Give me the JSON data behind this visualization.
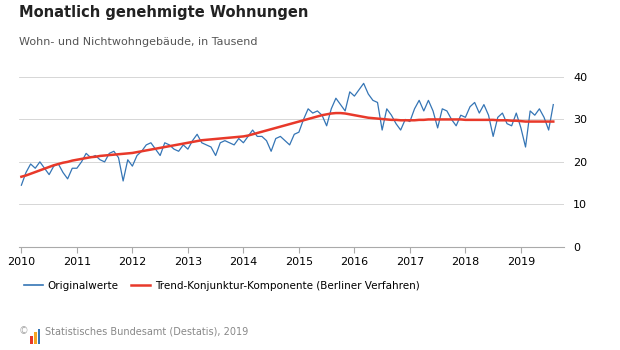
{
  "title": "Monatlich genehmigte Wohnungen",
  "subtitle": "Wohn- und Nichtwohngebäude, in Tausend",
  "footer": "© 📈 Statistisches Bundesamt (Destatis), 2019",
  "footer2": "©  Statistisches Bundesamt (Destatis), 2019",
  "legend_labels": [
    "Originalwerte",
    "Trend-Konjunktur-Komponente (Berliner Verfahren)"
  ],
  "blue_color": "#3575b5",
  "red_color": "#e8392a",
  "ylim": [
    0,
    40
  ],
  "yticks": [
    0,
    10,
    20,
    30,
    40
  ],
  "background_color": "#ffffff",
  "originalwerte": [
    14.5,
    17.5,
    19.5,
    18.5,
    20.0,
    18.5,
    17.0,
    19.0,
    19.5,
    17.5,
    16.0,
    18.5,
    18.5,
    20.0,
    22.0,
    21.0,
    21.5,
    20.5,
    20.0,
    22.0,
    22.5,
    21.0,
    15.5,
    20.5,
    19.0,
    21.5,
    22.5,
    24.0,
    24.5,
    23.0,
    21.5,
    24.5,
    24.0,
    23.0,
    22.5,
    24.0,
    23.0,
    25.0,
    26.5,
    24.5,
    24.0,
    23.5,
    21.5,
    24.5,
    25.0,
    24.5,
    24.0,
    25.5,
    24.5,
    26.0,
    27.5,
    26.0,
    26.0,
    25.0,
    22.5,
    25.5,
    26.0,
    25.0,
    24.0,
    26.5,
    27.0,
    30.0,
    32.5,
    31.5,
    32.0,
    31.0,
    28.5,
    32.5,
    35.0,
    33.5,
    32.0,
    36.5,
    35.5,
    37.0,
    38.5,
    36.0,
    34.5,
    34.0,
    27.5,
    32.5,
    31.0,
    29.0,
    27.5,
    30.0,
    29.5,
    32.5,
    34.5,
    32.0,
    34.5,
    32.0,
    28.0,
    32.5,
    32.0,
    30.0,
    28.5,
    31.0,
    30.5,
    33.0,
    34.0,
    31.5,
    33.5,
    31.0,
    26.0,
    30.5,
    31.5,
    29.0,
    28.5,
    31.5,
    28.0,
    23.5,
    32.0,
    31.0,
    32.5,
    30.5,
    27.5,
    33.5
  ],
  "trend": [
    16.5,
    16.8,
    17.2,
    17.6,
    18.0,
    18.4,
    18.8,
    19.2,
    19.5,
    19.8,
    20.0,
    20.3,
    20.5,
    20.7,
    20.9,
    21.1,
    21.2,
    21.4,
    21.5,
    21.6,
    21.7,
    21.8,
    21.9,
    22.0,
    22.1,
    22.3,
    22.5,
    22.7,
    22.9,
    23.1,
    23.3,
    23.5,
    23.7,
    23.9,
    24.1,
    24.3,
    24.5,
    24.7,
    24.9,
    25.1,
    25.2,
    25.3,
    25.4,
    25.5,
    25.6,
    25.7,
    25.8,
    25.9,
    26.0,
    26.2,
    26.5,
    26.8,
    27.1,
    27.4,
    27.7,
    28.0,
    28.3,
    28.6,
    28.9,
    29.2,
    29.5,
    29.8,
    30.1,
    30.4,
    30.7,
    31.0,
    31.2,
    31.4,
    31.5,
    31.5,
    31.4,
    31.2,
    31.0,
    30.8,
    30.6,
    30.4,
    30.3,
    30.2,
    30.1,
    30.0,
    29.9,
    29.9,
    29.8,
    29.8,
    29.8,
    29.8,
    29.9,
    29.9,
    30.0,
    30.0,
    30.0,
    30.0,
    30.0,
    30.0,
    30.0,
    30.0,
    29.9,
    29.9,
    29.9,
    29.9,
    29.9,
    29.9,
    29.9,
    29.8,
    29.8,
    29.8,
    29.7,
    29.7,
    29.6,
    29.5,
    29.5,
    29.5,
    29.5,
    29.5,
    29.5,
    29.5
  ],
  "x_start_year": 2010,
  "n_months": 116,
  "xtick_years": [
    2010,
    2011,
    2012,
    2013,
    2014,
    2015,
    2016,
    2017,
    2018,
    2019
  ]
}
